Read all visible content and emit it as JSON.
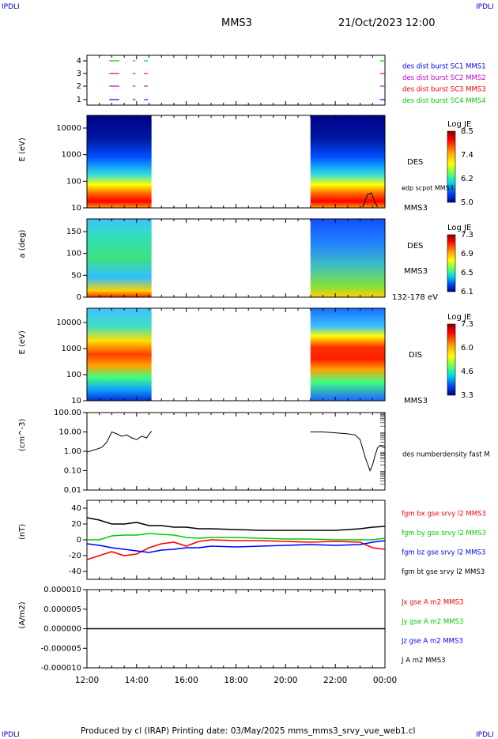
{
  "header": {
    "corner_label": "IPDLI",
    "mission": "MMS3",
    "datetime": "21/Oct/2023 12:00"
  },
  "footer": {
    "text": "Produced by cl (IRAP)   Printing date: 03/May/2025   mms_mms3_srvy_vue_web1.cl"
  },
  "time_axis": {
    "ticks": [
      "12:00",
      "14:00",
      "16:00",
      "18:00",
      "20:00",
      "22:00",
      "00:00"
    ]
  },
  "colors": {
    "red": "#ff0000",
    "green": "#00cc00",
    "blue": "#0000ff",
    "magenta": "#cc00cc",
    "black": "#000000"
  },
  "chart_data": [
    {
      "type": "scatter",
      "name": "burst-coverage",
      "yticks": [
        "4",
        "3",
        "2",
        "1"
      ],
      "legend": [
        {
          "label": "des dist burst SC1 MMS1",
          "color": "#0000ff"
        },
        {
          "label": "des dist burst SC2 MMS2",
          "color": "#cc00cc"
        },
        {
          "label": "des dist burst SC3 MMS3",
          "color": "#ff0000"
        },
        {
          "label": "des dist burst SC4 MMS4",
          "color": "#00cc00"
        }
      ],
      "segments": [
        {
          "sc": 4,
          "start": 12.9,
          "end": 13.3
        },
        {
          "sc": 4,
          "start": 13.85,
          "end": 13.95
        },
        {
          "sc": 4,
          "start": 14.3,
          "end": 14.45
        },
        {
          "sc": 4,
          "start": 23.8,
          "end": 24.0
        },
        {
          "sc": 3,
          "start": 12.9,
          "end": 13.3
        },
        {
          "sc": 3,
          "start": 13.85,
          "end": 13.95
        },
        {
          "sc": 3,
          "start": 14.3,
          "end": 14.45
        },
        {
          "sc": 3,
          "start": 23.8,
          "end": 24.0
        },
        {
          "sc": 2,
          "start": 12.9,
          "end": 13.3
        },
        {
          "sc": 2,
          "start": 13.85,
          "end": 13.95
        },
        {
          "sc": 2,
          "start": 14.3,
          "end": 14.45
        },
        {
          "sc": 2,
          "start": 23.8,
          "end": 24.0
        },
        {
          "sc": 1,
          "start": 12.9,
          "end": 13.3
        },
        {
          "sc": 1,
          "start": 13.85,
          "end": 13.95
        },
        {
          "sc": 1,
          "start": 14.3,
          "end": 14.45
        },
        {
          "sc": 1,
          "start": 23.8,
          "end": 24.0
        }
      ]
    },
    {
      "type": "heatmap",
      "name": "des-energy",
      "ylabel": "E (eV)",
      "yticks": [
        "10000",
        "1000",
        "100",
        "10"
      ],
      "right_labels": [
        "DES",
        "edp scpot MMS3",
        "MMS3"
      ],
      "colorbar": {
        "title": "Log JE",
        "ticks": [
          "8.5",
          "7.4",
          "6.2",
          "5.0"
        ]
      },
      "coverage": [
        [
          12.0,
          14.6
        ],
        [
          21.0,
          24.0
        ]
      ]
    },
    {
      "type": "heatmap",
      "name": "des-pitch",
      "ylabel": "a (deg)",
      "yticks": [
        "150",
        "100",
        "50",
        "0"
      ],
      "right_labels": [
        "DES",
        "MMS3",
        "132-178 eV"
      ],
      "colorbar": {
        "title": "Log JE",
        "ticks": [
          "7.3",
          "6.9",
          "6.5",
          "6.1"
        ]
      },
      "coverage": [
        [
          12.0,
          14.6
        ],
        [
          21.0,
          24.0
        ]
      ]
    },
    {
      "type": "heatmap",
      "name": "dis-energy",
      "ylabel": "E (eV)",
      "yticks": [
        "10000",
        "1000",
        "100",
        "10"
      ],
      "right_labels": [
        "DIS",
        "MMS3"
      ],
      "colorbar": {
        "title": "Log JE",
        "ticks": [
          "7.3",
          "6.0",
          "4.6",
          "3.3"
        ]
      },
      "coverage": [
        [
          12.0,
          14.6
        ],
        [
          21.0,
          24.0
        ]
      ]
    },
    {
      "type": "line",
      "name": "density",
      "ylabel": "(cm^-3)",
      "yticks": [
        "100.00",
        "10.00",
        "1.00",
        "0.10",
        "0.01"
      ],
      "ylim": [
        0.01,
        100
      ],
      "scale": "log",
      "legend": [
        "des numberdensity fast M"
      ],
      "series": [
        {
          "name": "des numberdensity fast M",
          "segments": [
            {
              "x": [
                12.0,
                12.2,
                12.4,
                12.6,
                12.8,
                13.0,
                13.2,
                13.4,
                13.6,
                13.8,
                14.0,
                14.2,
                14.4,
                14.6
              ],
              "y": [
                0.9,
                1.1,
                1.3,
                1.6,
                3.0,
                10.0,
                8.0,
                6.0,
                7.0,
                5.0,
                4.0,
                6.0,
                5.0,
                11.0
              ]
            },
            {
              "x": [
                21.0,
                21.5,
                22.0,
                22.5,
                22.8,
                23.0,
                23.2,
                23.4,
                23.5,
                23.6,
                23.7,
                23.8,
                24.0
              ],
              "y": [
                10.0,
                10.0,
                9.0,
                8.0,
                7.0,
                4.0,
                0.5,
                0.1,
                0.2,
                0.6,
                1.5,
                2.0,
                1.5
              ]
            }
          ]
        }
      ]
    },
    {
      "type": "line",
      "name": "magnetic-field",
      "ylabel": "(nT)",
      "yticks": [
        "40",
        "20",
        "0",
        "-20",
        "-40"
      ],
      "ylim": [
        -50,
        50
      ],
      "legend": [
        {
          "label": "fgm bx gse srvy l2 MMS3",
          "color": "#ff0000"
        },
        {
          "label": "fgm by gse srvy l2 MMS3",
          "color": "#00cc00"
        },
        {
          "label": "fgm bz gse srvy l2 MMS3",
          "color": "#0000ff"
        },
        {
          "label": "fgm bt gse srvy l2 MMS3",
          "color": "#000000"
        }
      ],
      "series": [
        {
          "name": "fgm bx gse srvy l2 MMS3",
          "color": "#ff0000",
          "x": [
            12.0,
            12.5,
            13.0,
            13.5,
            14.0,
            14.5,
            15.0,
            15.5,
            16.0,
            16.5,
            17.0,
            18.0,
            19.0,
            20.0,
            21.0,
            22.0,
            23.0,
            23.5,
            24.0
          ],
          "y": [
            -25,
            -20,
            -15,
            -20,
            -18,
            -10,
            -5,
            -3,
            -8,
            -2,
            0,
            -1,
            -1,
            -2,
            -3,
            -2,
            -3,
            -10,
            -12
          ]
        },
        {
          "name": "fgm by gse srvy l2 MMS3",
          "color": "#00cc00",
          "x": [
            12.0,
            12.5,
            13.0,
            13.5,
            14.0,
            14.5,
            15.0,
            15.5,
            16.0,
            16.5,
            17.0,
            18.0,
            19.0,
            20.0,
            21.0,
            22.0,
            23.0,
            23.5,
            24.0
          ],
          "y": [
            0,
            0,
            5,
            6,
            6,
            8,
            7,
            6,
            3,
            2,
            3,
            3,
            2,
            1,
            1,
            0,
            0,
            0,
            2
          ]
        },
        {
          "name": "fgm bz gse srvy l2 MMS3",
          "color": "#0000ff",
          "x": [
            12.0,
            12.5,
            13.0,
            13.5,
            14.0,
            14.5,
            15.0,
            15.5,
            16.0,
            16.5,
            17.0,
            18.0,
            19.0,
            20.0,
            21.0,
            22.0,
            23.0,
            23.5,
            24.0
          ],
          "y": [
            -5,
            -7,
            -10,
            -12,
            -14,
            -16,
            -13,
            -12,
            -10,
            -10,
            -8,
            -9,
            -8,
            -7,
            -6,
            -7,
            -6,
            -3,
            -1
          ]
        },
        {
          "name": "fgm bt gse srvy l2 MMS3",
          "color": "#000000",
          "x": [
            12.0,
            12.5,
            13.0,
            13.5,
            14.0,
            14.5,
            15.0,
            15.5,
            16.0,
            16.5,
            17.0,
            18.0,
            19.0,
            20.0,
            21.0,
            22.0,
            23.0,
            23.5,
            24.0
          ],
          "y": [
            28,
            25,
            20,
            20,
            22,
            18,
            18,
            16,
            16,
            14,
            14,
            13,
            12,
            12,
            12,
            12,
            14,
            16,
            17
          ]
        }
      ]
    },
    {
      "type": "line",
      "name": "current-density",
      "ylabel": "(A/m2)",
      "yticks": [
        "0.000010",
        "0.000005",
        "0.000000",
        "-0.000005",
        "-0.000010"
      ],
      "ylim": [
        -1e-05,
        1e-05
      ],
      "legend": [
        {
          "label": "Jx gse A m2 MMS3",
          "color": "#ff0000"
        },
        {
          "label": "Jy gse A m2 MMS3",
          "color": "#00cc00"
        },
        {
          "label": "Jz gse A m2 MMS3",
          "color": "#0000ff"
        },
        {
          "label": "J A m2 MMS3",
          "color": "#000000"
        }
      ],
      "series": [
        {
          "name": "J A m2 MMS3",
          "color": "#000000",
          "x": [
            12.0,
            24.0
          ],
          "y": [
            0.0,
            0.0
          ]
        }
      ]
    }
  ]
}
